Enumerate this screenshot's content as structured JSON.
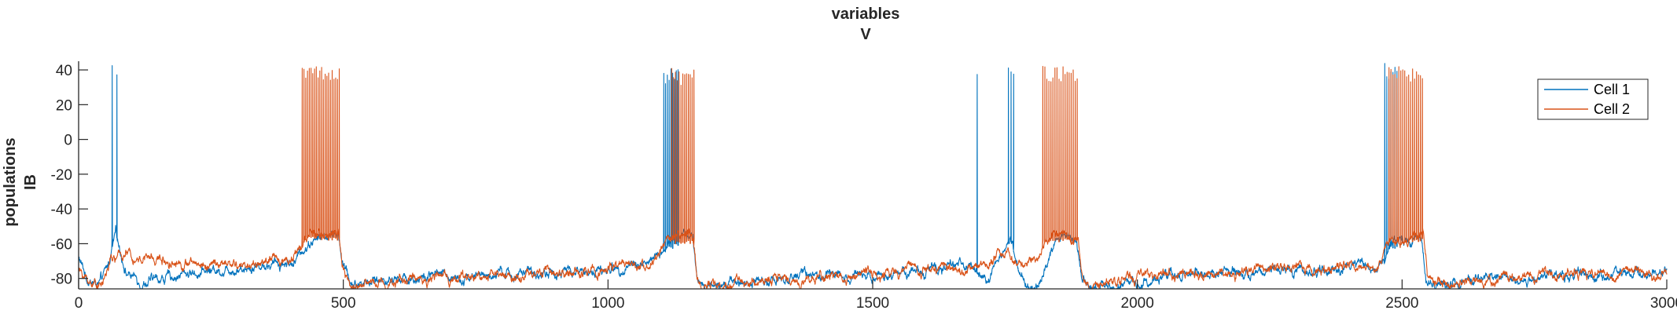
{
  "chart_data": {
    "type": "line",
    "title_lines": [
      "variables",
      "V"
    ],
    "ylabel_lines": [
      "populations",
      "IB"
    ],
    "xlim": [
      0,
      3000
    ],
    "ylim": [
      -86,
      45
    ],
    "xticks": [
      0,
      500,
      1000,
      1500,
      2000,
      2500,
      3000
    ],
    "yticks": [
      -80,
      -60,
      -40,
      -20,
      0,
      20,
      40
    ],
    "grid": false,
    "legend_position": "top-right",
    "series": [
      {
        "name": "Cell 1",
        "color": "#0072BD",
        "baseline": [
          [
            0,
            -68
          ],
          [
            15,
            -80
          ],
          [
            40,
            -84
          ],
          [
            55,
            -74
          ],
          [
            70,
            -55
          ],
          [
            90,
            -76
          ],
          [
            120,
            -82
          ],
          [
            160,
            -80
          ],
          [
            200,
            -77
          ],
          [
            260,
            -75
          ],
          [
            320,
            -73
          ],
          [
            380,
            -71
          ],
          [
            410,
            -70
          ],
          [
            425,
            -63
          ],
          [
            440,
            -58
          ],
          [
            470,
            -56
          ],
          [
            490,
            -55
          ],
          [
            500,
            -72
          ],
          [
            515,
            -84
          ],
          [
            560,
            -81
          ],
          [
            620,
            -80
          ],
          [
            700,
            -79
          ],
          [
            800,
            -78
          ],
          [
            900,
            -77
          ],
          [
            1000,
            -75
          ],
          [
            1050,
            -72
          ],
          [
            1090,
            -69
          ],
          [
            1110,
            -62
          ],
          [
            1125,
            -58
          ],
          [
            1150,
            -56
          ],
          [
            1160,
            -55
          ],
          [
            1168,
            -80
          ],
          [
            1180,
            -84
          ],
          [
            1250,
            -81
          ],
          [
            1350,
            -79
          ],
          [
            1450,
            -77
          ],
          [
            1550,
            -76
          ],
          [
            1650,
            -74
          ],
          [
            1690,
            -74
          ],
          [
            1705,
            -78
          ],
          [
            1720,
            -80
          ],
          [
            1740,
            -70
          ],
          [
            1760,
            -56
          ],
          [
            1775,
            -76
          ],
          [
            1790,
            -82
          ],
          [
            1810,
            -84
          ],
          [
            1830,
            -70
          ],
          [
            1845,
            -60
          ],
          [
            1870,
            -58
          ],
          [
            1885,
            -57
          ],
          [
            1895,
            -80
          ],
          [
            1910,
            -84
          ],
          [
            1980,
            -82
          ],
          [
            2050,
            -80
          ],
          [
            2150,
            -78
          ],
          [
            2250,
            -77
          ],
          [
            2350,
            -75
          ],
          [
            2450,
            -73
          ],
          [
            2468,
            -66
          ],
          [
            2480,
            -60
          ],
          [
            2510,
            -58
          ],
          [
            2535,
            -56
          ],
          [
            2545,
            -80
          ],
          [
            2560,
            -84
          ],
          [
            2650,
            -81
          ],
          [
            2750,
            -79
          ],
          [
            2850,
            -77
          ],
          [
            2950,
            -76
          ],
          [
            3000,
            -75
          ]
        ],
        "spike_bursts": [
          {
            "start": 63,
            "end": 72,
            "count": 2,
            "peak": 44,
            "trough": -55
          },
          {
            "start": 1105,
            "end": 1132,
            "count": 9,
            "peak": 41,
            "trough": -60
          },
          {
            "start": 1697,
            "end": 1698,
            "count": 1,
            "peak": 38,
            "trough": -70
          },
          {
            "start": 1756,
            "end": 1766,
            "count": 3,
            "peak": 44,
            "trough": -56
          },
          {
            "start": 2467,
            "end": 2490,
            "count": 7,
            "peak": 44,
            "trough": -60
          }
        ]
      },
      {
        "name": "Cell 2",
        "color": "#D95319",
        "baseline": [
          [
            0,
            -75
          ],
          [
            20,
            -82
          ],
          [
            45,
            -83
          ],
          [
            60,
            -70
          ],
          [
            90,
            -66
          ],
          [
            130,
            -68
          ],
          [
            180,
            -70
          ],
          [
            240,
            -72
          ],
          [
            300,
            -73
          ],
          [
            360,
            -70
          ],
          [
            405,
            -68
          ],
          [
            420,
            -60
          ],
          [
            440,
            -56
          ],
          [
            470,
            -54
          ],
          [
            490,
            -54
          ],
          [
            498,
            -75
          ],
          [
            512,
            -85
          ],
          [
            560,
            -82
          ],
          [
            640,
            -80
          ],
          [
            720,
            -79
          ],
          [
            820,
            -78
          ],
          [
            920,
            -77
          ],
          [
            1000,
            -75
          ],
          [
            1060,
            -72
          ],
          [
            1095,
            -68
          ],
          [
            1110,
            -60
          ],
          [
            1130,
            -57
          ],
          [
            1160,
            -55
          ],
          [
            1168,
            -78
          ],
          [
            1180,
            -85
          ],
          [
            1250,
            -82
          ],
          [
            1350,
            -80
          ],
          [
            1450,
            -78
          ],
          [
            1550,
            -76
          ],
          [
            1650,
            -74
          ],
          [
            1720,
            -70
          ],
          [
            1760,
            -66
          ],
          [
            1790,
            -72
          ],
          [
            1810,
            -68
          ],
          [
            1822,
            -60
          ],
          [
            1840,
            -56
          ],
          [
            1870,
            -55
          ],
          [
            1888,
            -54
          ],
          [
            1896,
            -78
          ],
          [
            1910,
            -85
          ],
          [
            1980,
            -82
          ],
          [
            2060,
            -79
          ],
          [
            2160,
            -77
          ],
          [
            2260,
            -76
          ],
          [
            2360,
            -74
          ],
          [
            2450,
            -72
          ],
          [
            2466,
            -64
          ],
          [
            2480,
            -58
          ],
          [
            2520,
            -56
          ],
          [
            2540,
            -55
          ],
          [
            2548,
            -78
          ],
          [
            2560,
            -85
          ],
          [
            2650,
            -81
          ],
          [
            2750,
            -78
          ],
          [
            2850,
            -76
          ],
          [
            2950,
            -77
          ],
          [
            3000,
            -77
          ]
        ],
        "spike_bursts": [
          {
            "start": 422,
            "end": 492,
            "count": 22,
            "peak": 43,
            "trough": -55
          },
          {
            "start": 1120,
            "end": 1162,
            "count": 13,
            "peak": 41,
            "trough": -57
          },
          {
            "start": 1821,
            "end": 1886,
            "count": 18,
            "peak": 43,
            "trough": -56
          },
          {
            "start": 2475,
            "end": 2538,
            "count": 18,
            "peak": 42,
            "trough": -57
          }
        ]
      }
    ]
  }
}
